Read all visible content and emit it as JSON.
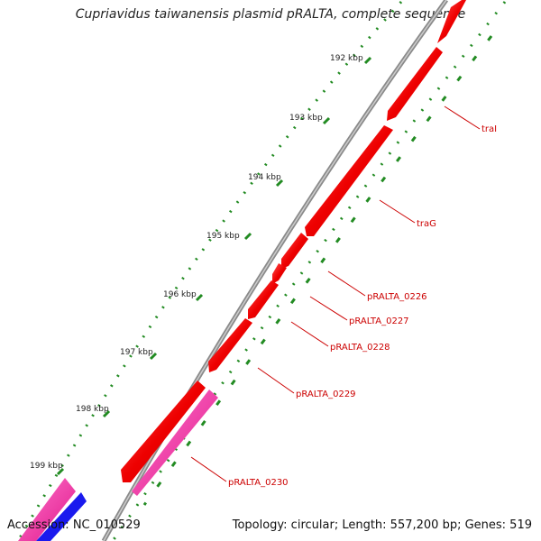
{
  "title": "Cupriavidus taiwanensis plasmid pRALTA, complete sequence",
  "footer": {
    "accession": "Accession: NC_010529",
    "summary": "Topology: circular; Length: 557,200 bp; Genes: 519"
  },
  "ticks": [
    "192 kbp",
    "193 kbp",
    "194 kbp",
    "195 kbp",
    "196 kbp",
    "197 kbp",
    "198 kbp",
    "199 kbp"
  ],
  "gene_labels": [
    "traI",
    "traG",
    "pRALTA_0226",
    "pRALTA_0227",
    "pRALTA_0228",
    "pRALTA_0229",
    "pRALTA_0230"
  ],
  "colors": {
    "backbone": "#8a8a8a",
    "forward_gene": "#ee0000",
    "reverse_gene": "#ff33aa",
    "other_gene": "#1a1aee",
    "gc_dots": "#228b22",
    "label_text": "#cc0000"
  }
}
